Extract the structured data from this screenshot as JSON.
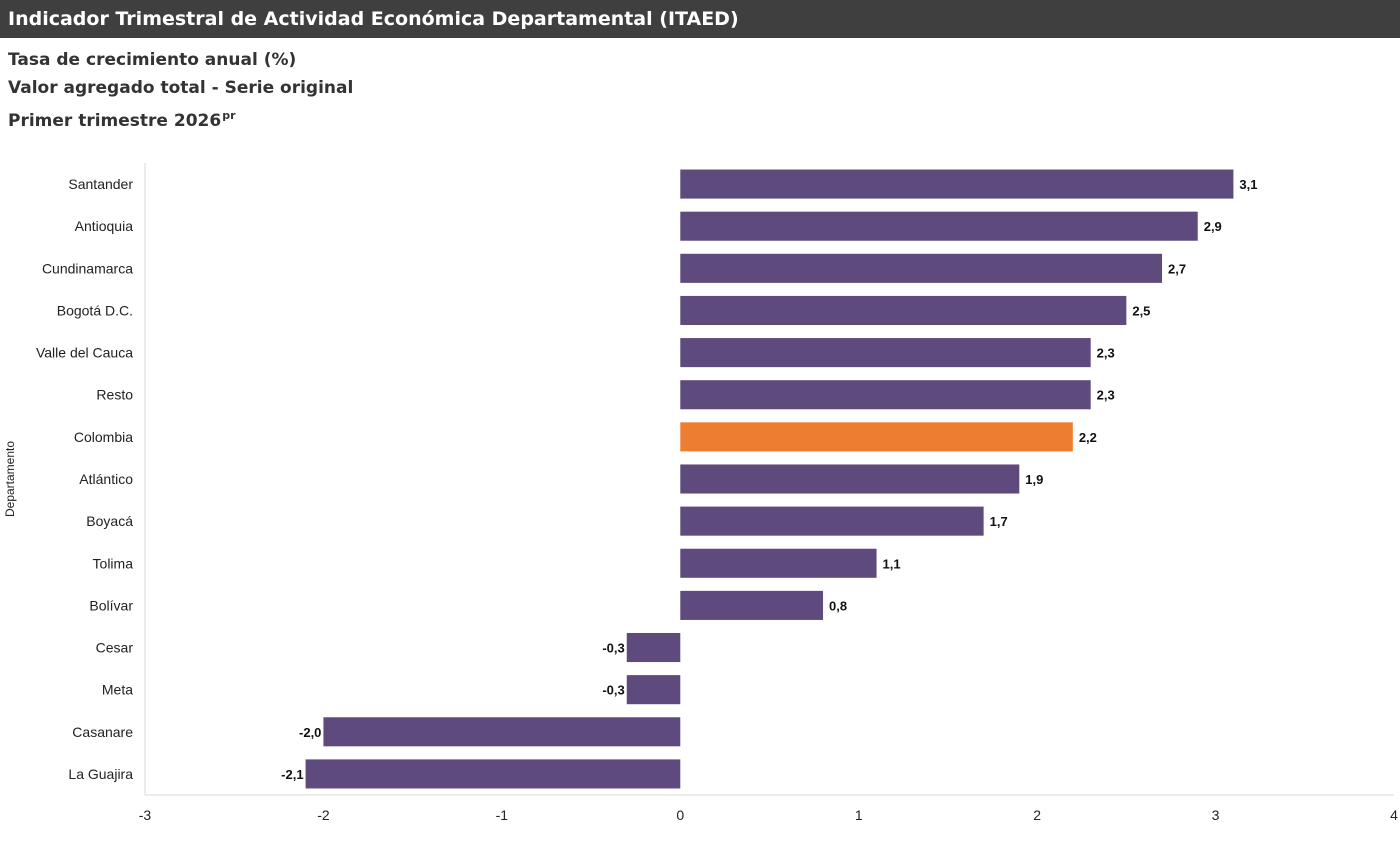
{
  "header": {
    "title": "Indicador Trimestral de Actividad Económica Departamental (ITAED)"
  },
  "subtitles": {
    "line1": "Tasa de crecimiento anual (%)",
    "line2": "Valor agregado total - Serie original",
    "line3": "Primer trimestre 2026",
    "line3_sup": "pr"
  },
  "chart_data": {
    "type": "bar",
    "orientation": "horizontal",
    "ylabel": "Departamento",
    "xlabel": "",
    "xlim": [
      -3,
      4
    ],
    "xticks": [
      -3,
      -2,
      -1,
      0,
      1,
      2,
      3,
      4
    ],
    "grid": false,
    "categories": [
      "Santander",
      "Antioquia",
      "Cundinamarca",
      "Bogotá D.C.",
      "Valle del Cauca",
      "Resto",
      "Colombia",
      "Atlántico",
      "Boyacá",
      "Tolima",
      "Bolívar",
      "Cesar",
      "Meta",
      "Casanare",
      "La Guajira"
    ],
    "values": [
      3.1,
      2.9,
      2.7,
      2.5,
      2.3,
      2.3,
      2.2,
      1.9,
      1.7,
      1.1,
      0.8,
      -0.3,
      -0.3,
      -2.0,
      -2.1
    ],
    "data_labels": [
      "3,1",
      "2,9",
      "2,7",
      "2,5",
      "2,3",
      "2,3",
      "2,2",
      "1,9",
      "1,7",
      "1,1",
      "0,8",
      "-0,3",
      "-0,3",
      "-2,0",
      "-2,1"
    ],
    "colors": {
      "default": "#5e4a7c",
      "highlight": "#ed7d31",
      "highlight_category": "Colombia"
    }
  }
}
